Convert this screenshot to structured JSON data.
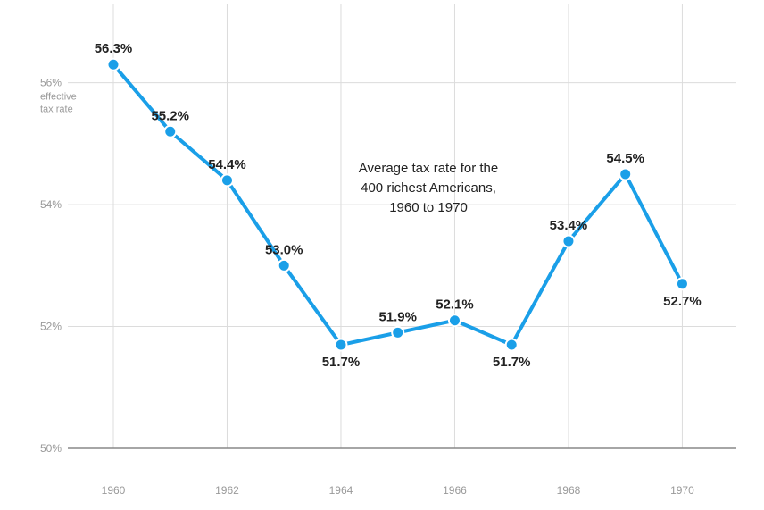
{
  "chart_data": {
    "type": "line",
    "title": "Average tax rate for the 400 richest Americans, 1960 to 1970",
    "title_lines": [
      "Average tax rate for the",
      "400 richest Americans,",
      "1960 to 1970"
    ],
    "ylabel_lines": [
      "effective",
      "tax rate"
    ],
    "x": [
      1960,
      1961,
      1962,
      1963,
      1964,
      1965,
      1966,
      1967,
      1968,
      1969,
      1970
    ],
    "values": [
      56.3,
      55.2,
      54.4,
      53.0,
      51.7,
      51.9,
      52.1,
      51.7,
      53.4,
      54.5,
      52.7
    ],
    "data_labels": [
      "56.3%",
      "55.2%",
      "54.4%",
      "53.0%",
      "51.7%",
      "51.9%",
      "52.1%",
      "51.7%",
      "53.4%",
      "54.5%",
      "52.7%"
    ],
    "label_positions": [
      "above",
      "above",
      "above",
      "above",
      "below",
      "above",
      "above",
      "below",
      "above",
      "above",
      "below"
    ],
    "xticks": [
      1960,
      1962,
      1964,
      1966,
      1968,
      1970
    ],
    "xtick_labels": [
      "1960",
      "1962",
      "1964",
      "1966",
      "1968",
      "1970"
    ],
    "yticks": [
      50,
      52,
      54,
      56
    ],
    "ytick_labels": [
      "50%",
      "52%",
      "54%",
      "56%"
    ],
    "xlim": [
      1959.2,
      1970.95
    ],
    "ylim": [
      50,
      57.3
    ],
    "grid": true,
    "line_color": "#1a9fe8",
    "marker_edge_color": "#ffffff"
  }
}
